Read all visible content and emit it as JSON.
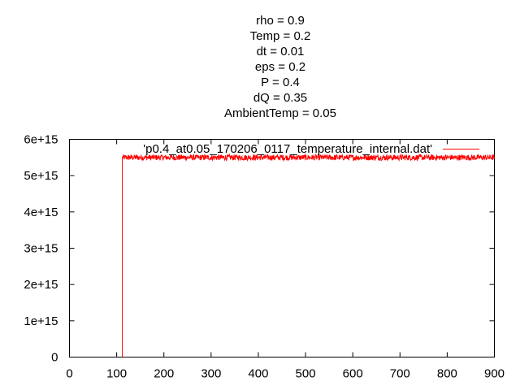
{
  "chart_data": {
    "type": "line",
    "title_lines": [
      "rho = 0.9",
      "Temp = 0.2",
      "dt = 0.01",
      "eps = 0.2",
      "P = 0.4",
      "dQ = 0.35",
      "AmbientTemp = 0.05"
    ],
    "xlabel": "",
    "ylabel": "",
    "xlim": [
      0,
      900
    ],
    "ylim": [
      0,
      6000000000000000.0
    ],
    "x_ticks": [
      0,
      100,
      200,
      300,
      400,
      500,
      600,
      700,
      800,
      900
    ],
    "x_tick_labels": [
      "0",
      "100",
      "200",
      "300",
      "400",
      "500",
      "600",
      "700",
      "800",
      "900"
    ],
    "y_ticks": [
      0,
      1000000000000000.0,
      2000000000000000.0,
      3000000000000000.0,
      4000000000000000.0,
      5000000000000000.0,
      6000000000000000.0
    ],
    "y_tick_labels": [
      "0",
      "1e+15",
      "2e+15",
      "3e+15",
      "4e+15",
      "5e+15",
      "6e+15"
    ],
    "grid": false,
    "legend_position": "top-right",
    "series": [
      {
        "name": "'p0.4_at0.05_170206_0117_temperature_internal.dat'",
        "color": "#ff0000",
        "x_start": 112,
        "x_end": 900,
        "y_mean": 5500000000000000.0,
        "y_noise_min": 5420000000000000.0,
        "y_noise_max": 5580000000000000.0,
        "points": [
          [
            112,
            0
          ],
          [
            112,
            5500000000000000.0
          ],
          [
            900,
            5500000000000000.0
          ]
        ]
      }
    ]
  }
}
